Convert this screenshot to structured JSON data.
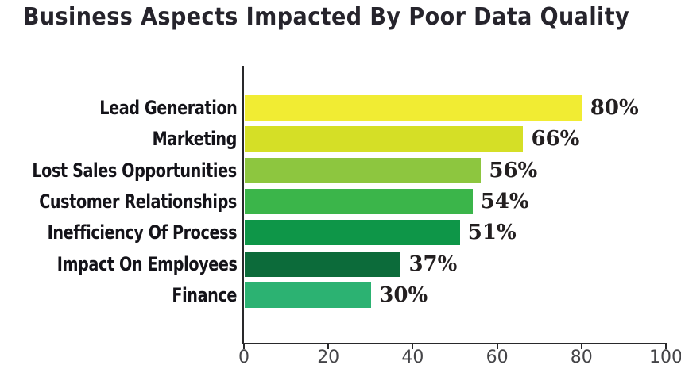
{
  "title": "Business Aspects Impacted By Poor Data Quality",
  "chart_data": {
    "type": "bar",
    "orientation": "horizontal",
    "title": "Business Aspects Impacted By Poor Data Quality",
    "categories": [
      "Lead Generation",
      "Marketing",
      "Lost Sales Opportunities",
      "Customer Relationships",
      "Inefficiency Of Process",
      "Impact On Employees",
      "Finance"
    ],
    "values": [
      80,
      66,
      56,
      54,
      51,
      37,
      30
    ],
    "value_labels": [
      "80%",
      "66%",
      "56%",
      "54%",
      "51%",
      "37%",
      "30%"
    ],
    "bar_colors": [
      "#f1ec33",
      "#d5df26",
      "#8dc63f",
      "#3bb54a",
      "#0e9648",
      "#0c6b3a",
      "#2cb272"
    ],
    "xlabel": "",
    "ylabel": "",
    "xlim": [
      0,
      100
    ],
    "x_ticks": [
      0,
      20,
      40,
      60,
      80,
      100
    ],
    "grid": false,
    "legend": false
  },
  "colors": {
    "background": "#ffffff",
    "title_text": "#26242c",
    "category_text": "#141319",
    "value_text": "#231f20",
    "axis": "#29292b",
    "tick_text": "#454548"
  }
}
